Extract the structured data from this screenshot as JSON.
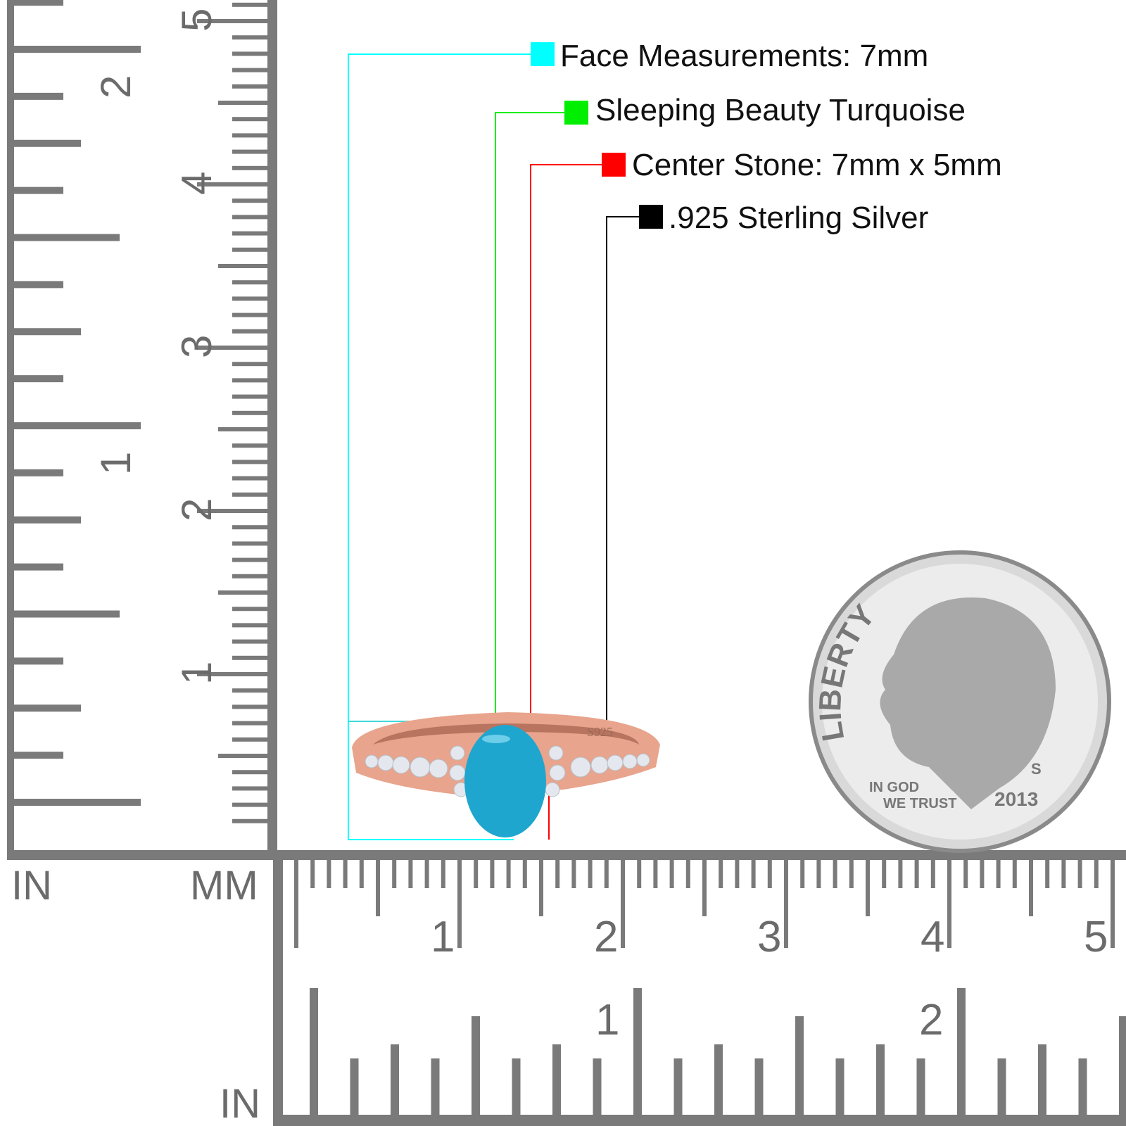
{
  "callouts": [
    {
      "text": "Face Measurements: 7mm",
      "color": "#00ffff"
    },
    {
      "text": "Sleeping Beauty Turquoise",
      "color": "#00ee00"
    },
    {
      "text": "Center Stone: 7mm x 5mm",
      "color": "#ff0000"
    },
    {
      "text": ".925 Sterling Silver",
      "color": "#000000"
    }
  ],
  "ruler": {
    "units_in_left": "IN",
    "units_mm": "MM",
    "units_in_bottom": "IN",
    "mm_labels": [
      "1",
      "2",
      "3",
      "4",
      "5"
    ],
    "in_labels": [
      "1",
      "2"
    ],
    "color": "#7a7a7a"
  },
  "ring": {
    "engraving": "S925",
    "metal_color": "#e8a48c",
    "stone_color": "#1fa6cf"
  },
  "coin": {
    "legend": "LIBERTY",
    "motto_1": "IN GOD",
    "motto_2": "WE TRUST",
    "year": "2013",
    "mint_mark": "S"
  }
}
